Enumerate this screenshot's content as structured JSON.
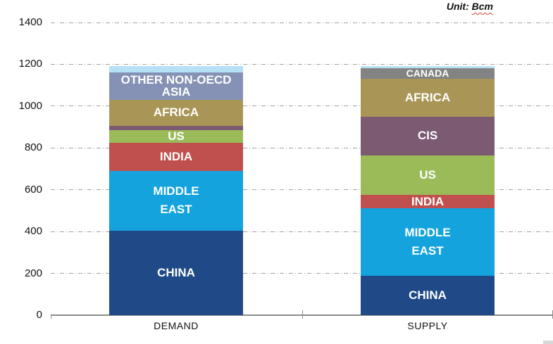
{
  "unit_note": {
    "prefix": "Unit: ",
    "term": "Bcm"
  },
  "chart_data": {
    "type": "bar",
    "stacked": true,
    "title": "",
    "unit": "Bcm",
    "categories": [
      "DEMAND",
      "SUPPLY"
    ],
    "xlabel": "",
    "ylabel": "",
    "ylim": [
      0,
      1400
    ],
    "ytick_interval": 200,
    "grid": "horizontal-dash-dot",
    "legend": "none (labels inside segments)",
    "series": [
      {
        "name": "CHINA",
        "color": "#1F4A87",
        "values": [
          405,
          190
        ],
        "labels": [
          "CHINA",
          "CHINA"
        ]
      },
      {
        "name": "MIDDLE EAST",
        "color": "#14A3DC",
        "values": [
          285,
          320
        ],
        "labels": [
          "MIDDLE\nEAST",
          "MIDDLE\nEAST"
        ],
        "line_height": 1.55
      },
      {
        "name": "INDIA",
        "color": "#C0504D",
        "values": [
          135,
          65
        ],
        "labels": [
          "INDIA",
          "INDIA"
        ]
      },
      {
        "name": "US",
        "color": "#9BBB59",
        "values": [
          60,
          190
        ],
        "labels": [
          "US",
          "US"
        ]
      },
      {
        "name": "CIS",
        "color": "#7B5A72",
        "values": [
          20,
          185
        ],
        "labels": [
          "",
          "CIS"
        ]
      },
      {
        "name": "AFRICA",
        "color": "#A99656",
        "values": [
          125,
          180
        ],
        "labels": [
          "AFRICA",
          "AFRICA"
        ]
      },
      {
        "name": "OTHER NON-OECD ASIA",
        "color": "#8591B5",
        "values": [
          130,
          0
        ],
        "labels": [
          "OTHER NON-OECD\nASIA",
          ""
        ],
        "line_height": 0.95
      },
      {
        "name": "CANADA",
        "color": "#838383",
        "values": [
          0,
          50
        ],
        "labels": [
          "",
          "CANADA"
        ],
        "label_size": 14
      },
      {
        "name": "unlabeled-light-blue",
        "color": "#B5E0F6",
        "values": [
          30,
          10
        ],
        "labels": [
          "",
          ""
        ]
      }
    ]
  }
}
